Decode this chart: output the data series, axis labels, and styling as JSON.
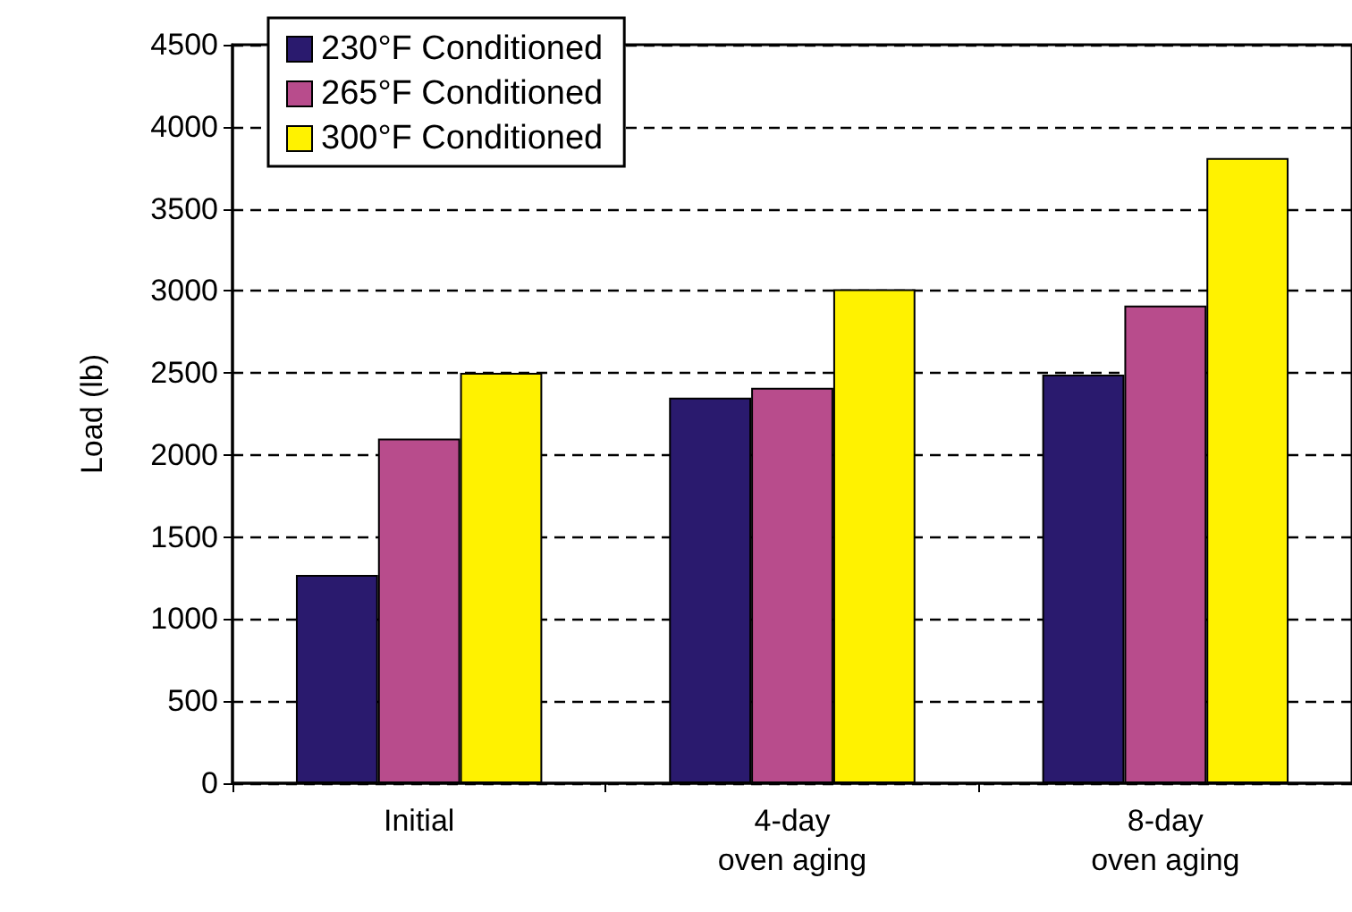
{
  "chart_data": {
    "type": "bar",
    "ylabel": "Load (lb)",
    "categories": [
      "Initial",
      "4-day\noven aging",
      "8-day\noven aging"
    ],
    "series": [
      {
        "name": "230°F Conditioned",
        "color": "#2a1a6e",
        "values": [
          1270,
          2350,
          2490
        ]
      },
      {
        "name": "265°F Conditioned",
        "color": "#b84c8c",
        "values": [
          2100,
          2410,
          2910
        ]
      },
      {
        "name": "300°F Conditioned",
        "color": "#fff200",
        "values": [
          2500,
          3010,
          3810
        ]
      }
    ],
    "ylim": [
      0,
      4500
    ],
    "yticks": [
      0,
      500,
      1000,
      1500,
      2000,
      2500,
      3000,
      3500,
      4000,
      4500
    ],
    "grid": "y",
    "legend": "top left"
  }
}
